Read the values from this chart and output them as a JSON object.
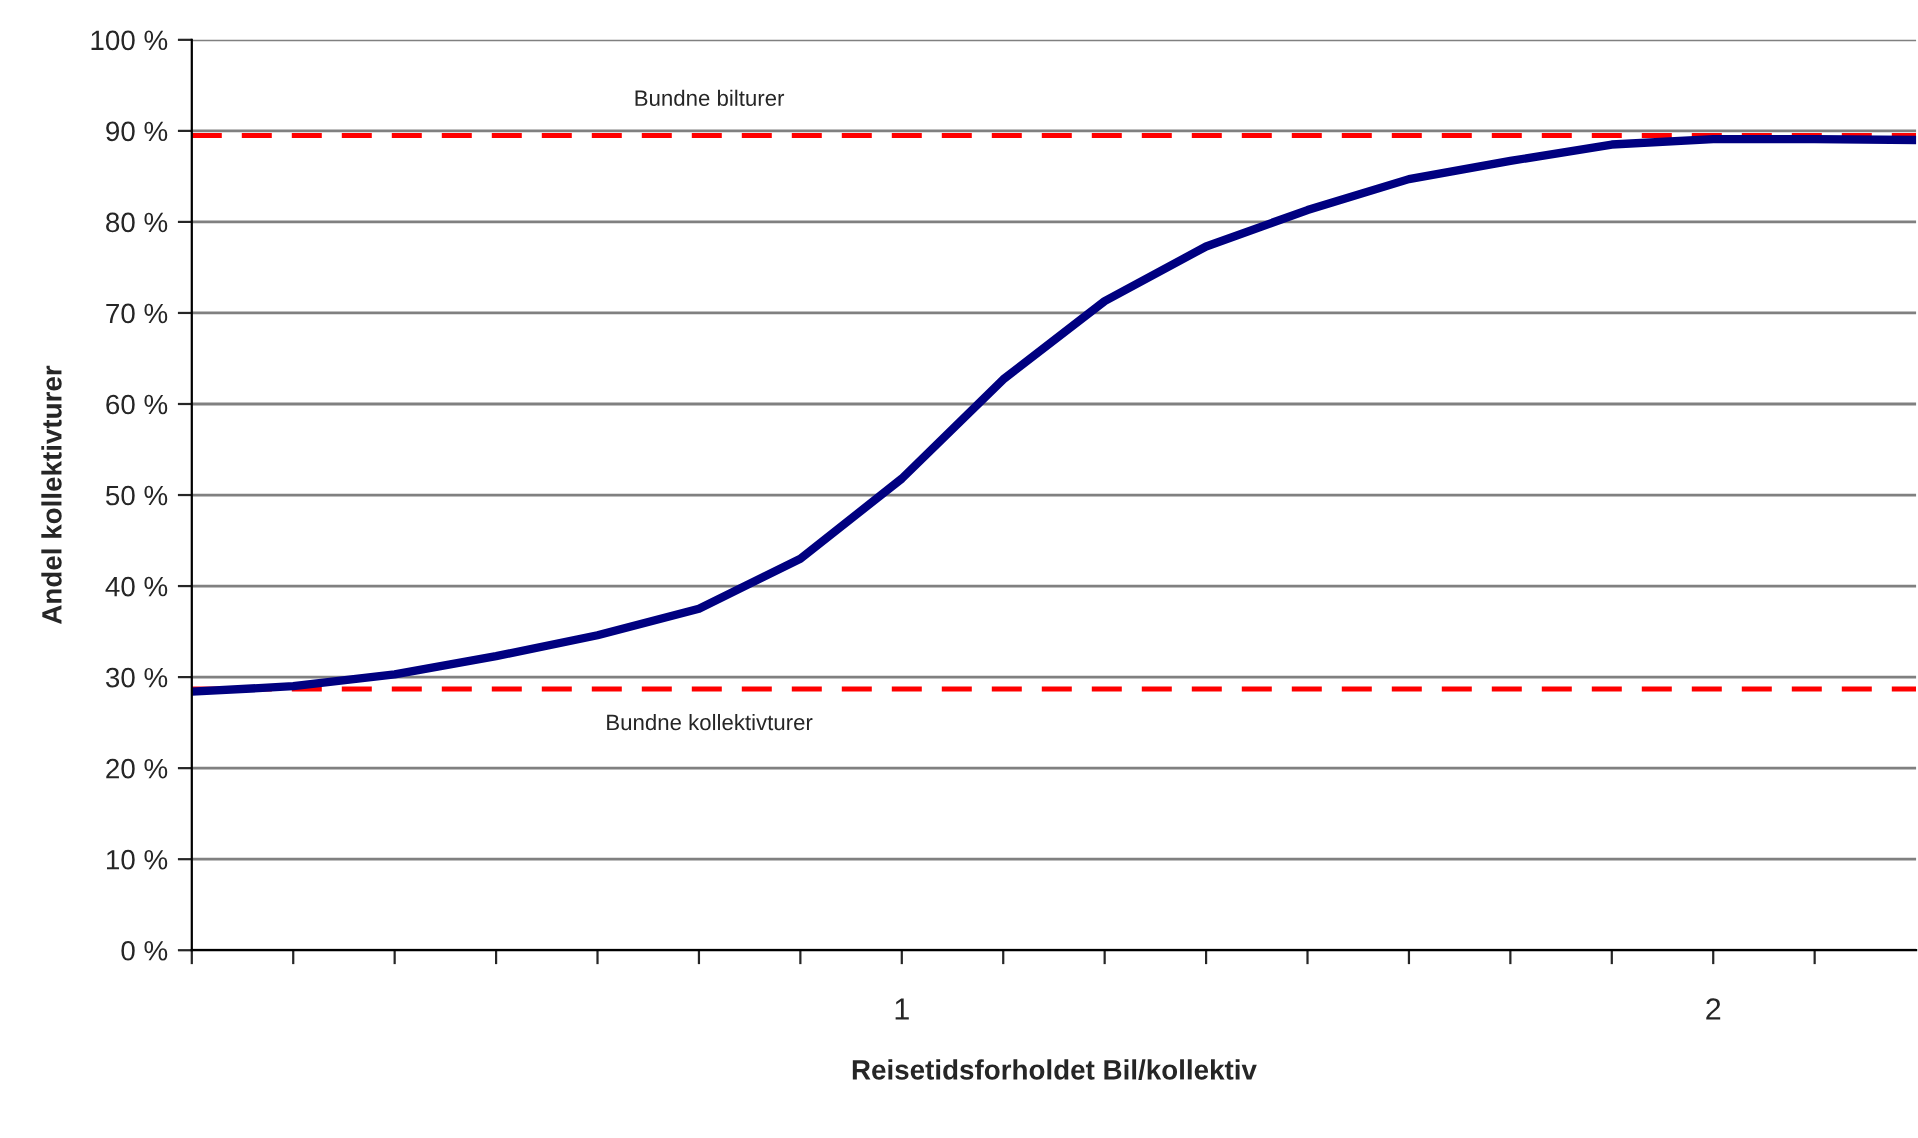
{
  "chart_data": {
    "type": "line",
    "xlabel": "Reisetidsforholdet Bil/kollektiv",
    "ylabel": "Andel kollektivturer",
    "x": [
      0.125,
      0.25,
      0.375,
      0.5,
      0.625,
      0.75,
      0.875,
      1.0,
      1.125,
      1.25,
      1.375,
      1.5,
      1.625,
      1.75,
      1.875,
      2.0,
      2.125,
      2.25
    ],
    "series": [
      {
        "color": "#000080",
        "values": [
          28.4,
          29.0,
          30.3,
          32.3,
          34.6,
          37.5,
          43.0,
          51.8,
          62.7,
          71.3,
          77.3,
          81.3,
          84.7,
          86.7,
          88.5,
          89.1,
          89.1,
          89.0
        ]
      }
    ],
    "xlim": [
      0.125,
      2.25
    ],
    "xticks": [
      {
        "value": 0.125,
        "label": null
      },
      {
        "value": 0.25,
        "label": null
      },
      {
        "value": 0.375,
        "label": null
      },
      {
        "value": 0.5,
        "label": null
      },
      {
        "value": 0.625,
        "label": null
      },
      {
        "value": 0.75,
        "label": null
      },
      {
        "value": 0.875,
        "label": null
      },
      1,
      {
        "value": 1.125,
        "label": null
      },
      {
        "value": 1.25,
        "label": null
      },
      {
        "value": 1.375,
        "label": null
      },
      {
        "value": 1.5,
        "label": null
      },
      {
        "value": 1.625,
        "label": null
      },
      {
        "value": 1.75,
        "label": null
      },
      {
        "value": 1.875,
        "label": null
      },
      2,
      {
        "value": 2.125,
        "label": null
      }
    ],
    "ylim": [
      0,
      100
    ],
    "yticks": [
      {
        "value": 0,
        "label": "0 %"
      },
      {
        "value": 10,
        "label": "10 %"
      },
      {
        "value": 20,
        "label": "20 %"
      },
      {
        "value": 30,
        "label": "30 %"
      },
      {
        "value": 40,
        "label": "40 %"
      },
      {
        "value": 50,
        "label": "50 %"
      },
      {
        "value": 60,
        "label": "60 %"
      },
      {
        "value": 70,
        "label": "70 %"
      },
      {
        "value": 80,
        "label": "80 %"
      },
      {
        "value": 90,
        "label": "90 %"
      },
      {
        "value": 100,
        "label": "100 %"
      }
    ],
    "ref_lines": [
      {
        "axis": "y",
        "value": 89.5,
        "label": "Bundne bilturer",
        "color": "#ff0000",
        "line_style": "dashed"
      },
      {
        "axis": "y",
        "value": 28.7,
        "label": "Bundne kollektivturer",
        "color": "#ff0000",
        "line_style": "dashed"
      }
    ],
    "grid": "y",
    "legend": false,
    "marker": "none",
    "line_style": "solid"
  }
}
